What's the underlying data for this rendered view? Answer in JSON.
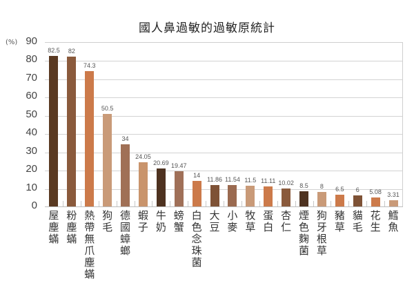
{
  "chart_data": {
    "type": "bar",
    "title": "國人鼻過敏的過敏原統計",
    "xlabel": "",
    "ylabel": "(%)",
    "ylim": [
      0,
      90
    ],
    "yticks": [
      0,
      10,
      20,
      30,
      40,
      50,
      60,
      70,
      80,
      90
    ],
    "grid": true,
    "legend": null,
    "categories": [
      "屋塵蟎",
      "粉塵蟎",
      "熱帶無爪塵蟎",
      "狗毛",
      "德國蟑螂",
      "蝦子",
      "牛奶",
      "螃蟹",
      "白色念珠菌",
      "大豆",
      "小麥",
      "牧草",
      "蛋白",
      "杏仁",
      "煙色麴菌",
      "狗牙根草",
      "豬草",
      "貓毛",
      "花生",
      "鱈魚"
    ],
    "values": [
      82.5,
      82,
      74.3,
      50.5,
      34,
      24.05,
      20.69,
      19.47,
      14,
      11.86,
      11.54,
      11.5,
      11.11,
      10.02,
      8.5,
      8,
      6.5,
      6,
      5.08,
      3.31
    ],
    "value_labels": [
      "82.5",
      "82",
      "74.3",
      "50.5",
      "34",
      "24.05",
      "20.69",
      "19.47",
      "14",
      "11.86",
      "11.54",
      "11.5",
      "11.11",
      "10.02",
      "8.5",
      "8",
      "6.5",
      "6",
      "5.08",
      "3.31"
    ],
    "colors": [
      "#5a3a22",
      "#8a5a3c",
      "#cc7a4a",
      "#c99a78",
      "#a07056",
      "#c9946c",
      "#4e3220",
      "#a07058",
      "#cc7a4a",
      "#7e5236",
      "#9a6a50",
      "#c99a78",
      "#cc7a4a",
      "#8a5a3c",
      "#4e3220",
      "#c99a78",
      "#cc7a4a",
      "#7e5236",
      "#cc7a4a",
      "#c99a78"
    ]
  },
  "header": {
    "title": "國人鼻過敏的過敏原統計",
    "unit": "(%)"
  }
}
